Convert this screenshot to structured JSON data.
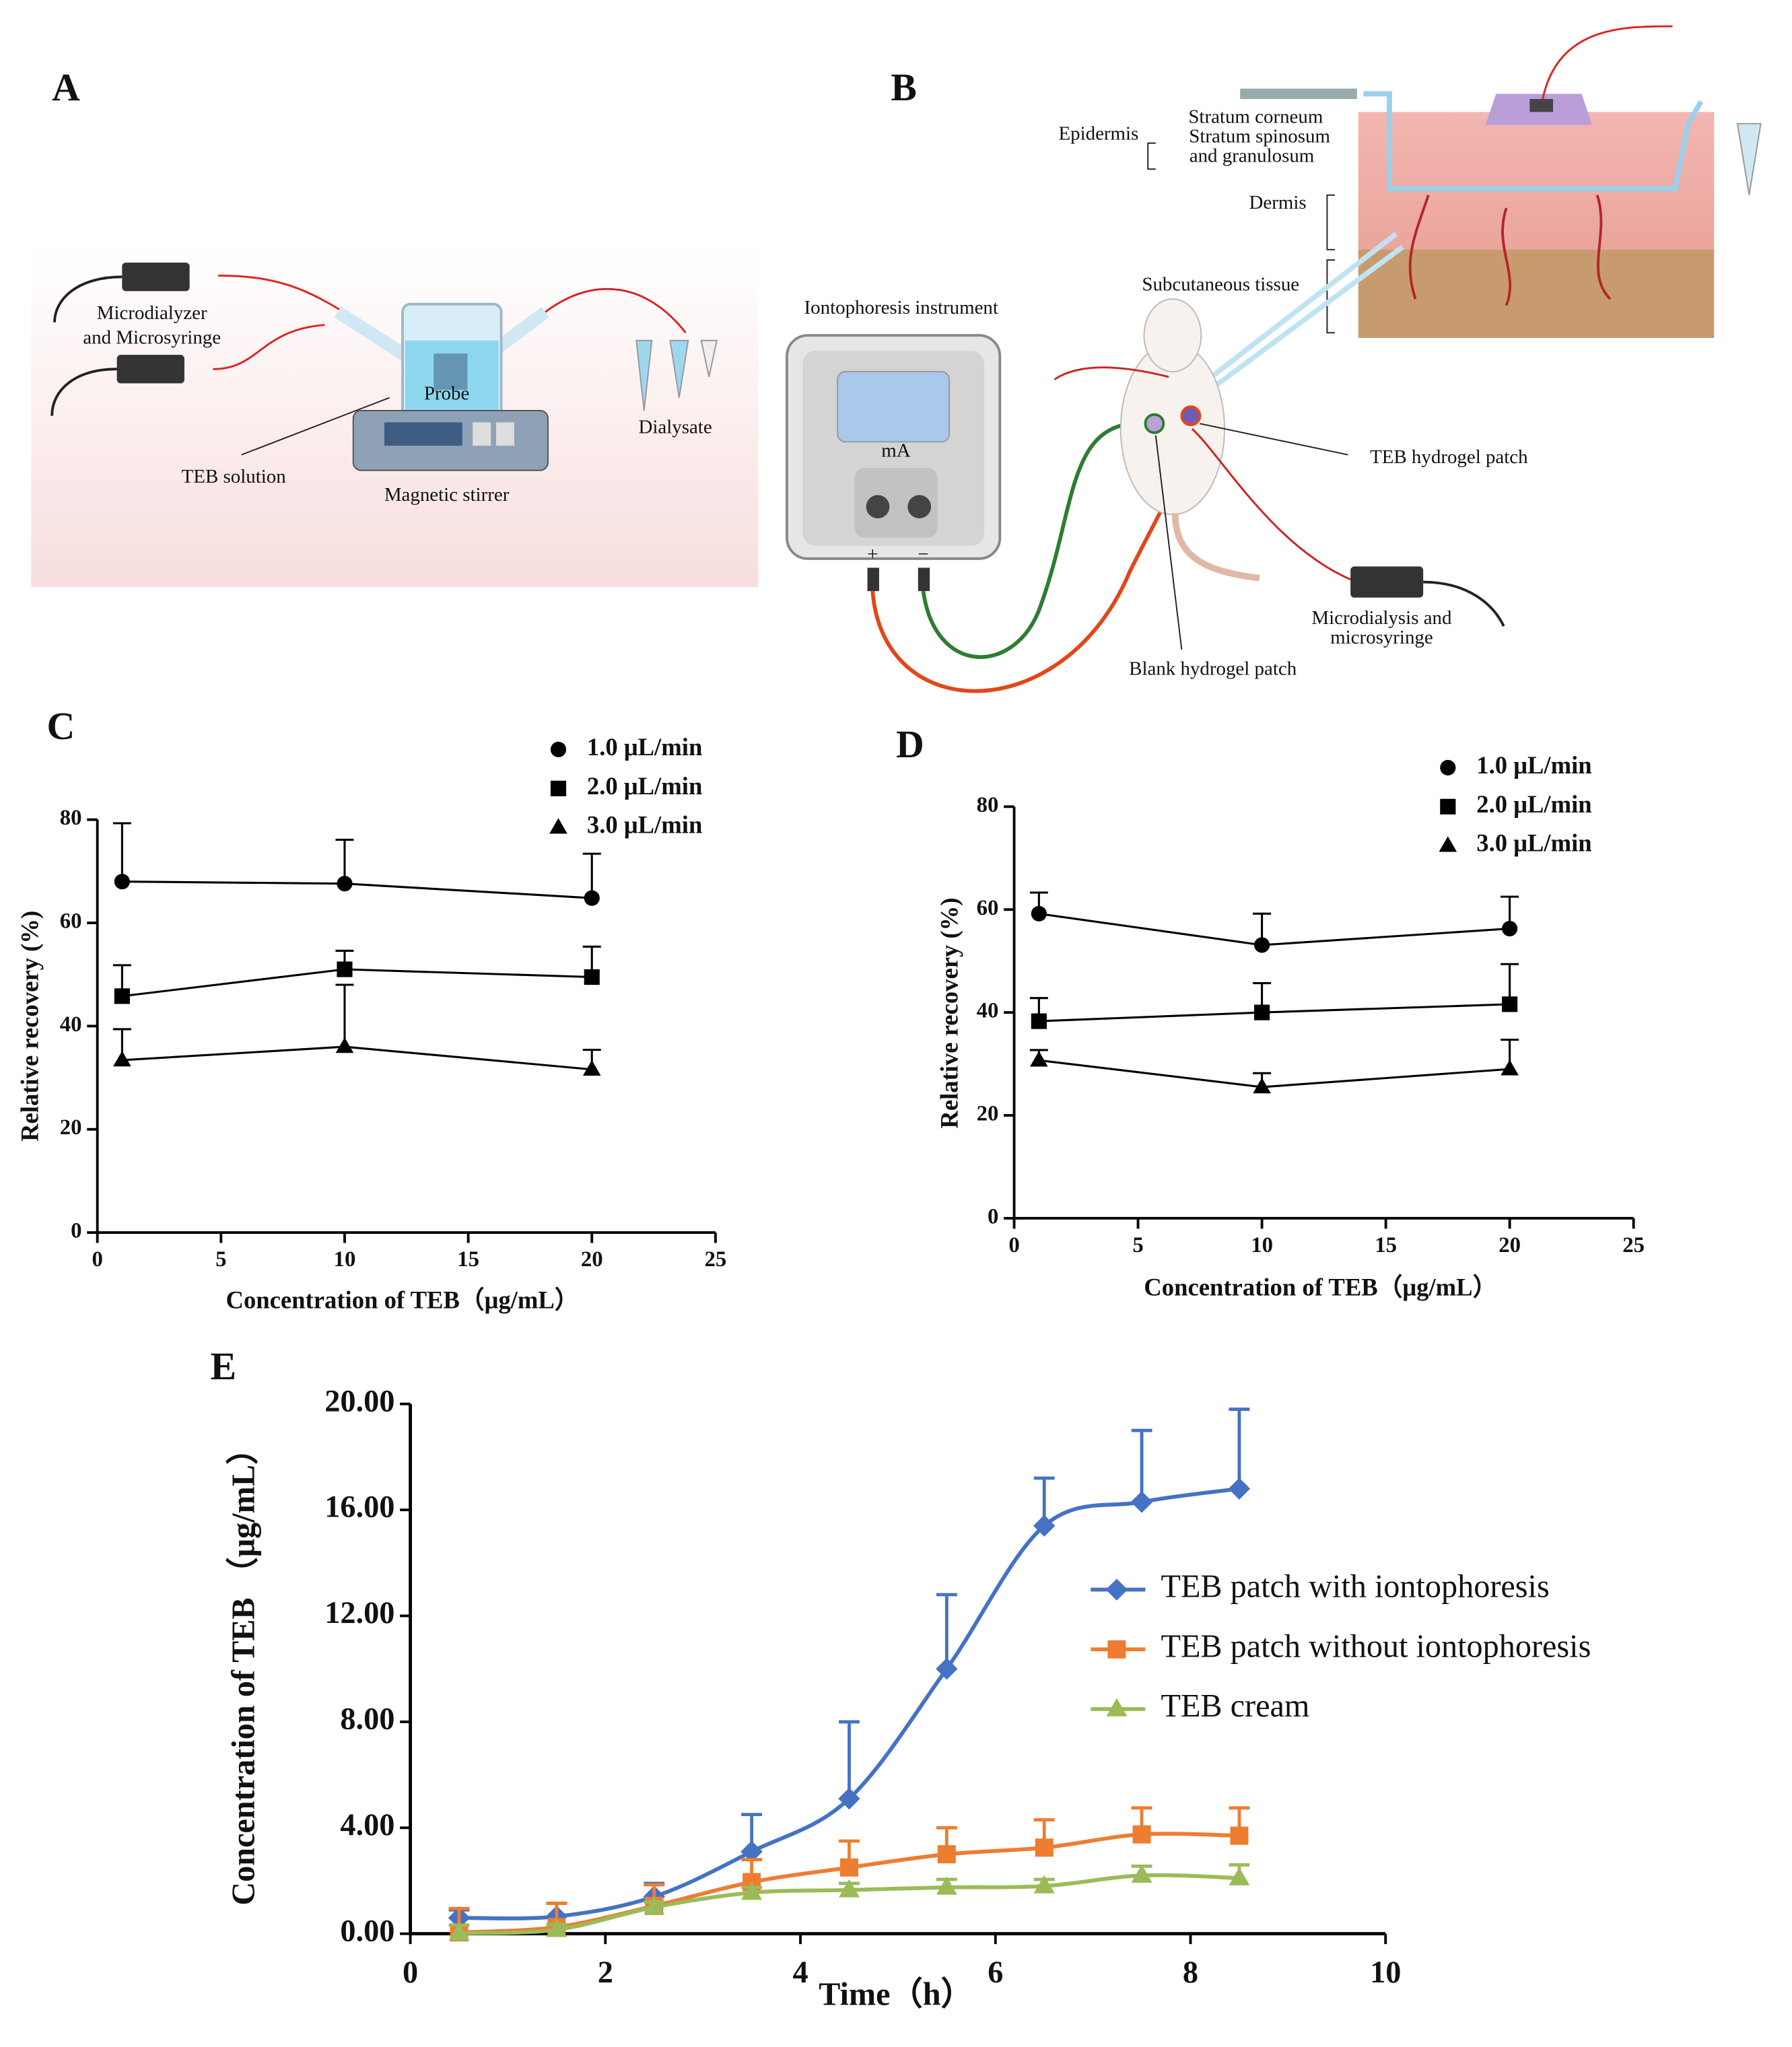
{
  "panels": {
    "a": "A",
    "b": "B",
    "c": "C",
    "d": "D",
    "e": "E"
  },
  "diagram_a": {
    "syringe_label": [
      "Microdialyzer",
      "and Microsyringe"
    ],
    "probe": "Probe",
    "dialysate": "Dialysate",
    "solution": "TEB solution",
    "stirrer": "Magnetic stirrer"
  },
  "diagram_b": {
    "epidermis": "Epidermis",
    "stratum_corneum": "Stratum corneum",
    "stratum_spinosum": [
      "Stratum spinosum",
      "and granulosum"
    ],
    "dermis": "Dermis",
    "subcutaneous": "Subcutaneous tissue",
    "instrument": "Iontophoresis instrument",
    "meter_unit": "mA",
    "plus": "+",
    "minus": "−",
    "teb_patch": "TEB hydrogel patch",
    "blank_patch": "Blank hydrogel patch",
    "microdialysis": [
      "Microdialysis and",
      "microsyringe"
    ]
  },
  "chart_data": [
    {
      "type": "line",
      "x_label": "Concentration of TEB（μg/mL）",
      "y_label": "Relative recovery (%)",
      "x": [
        1,
        10,
        20
      ],
      "xlim": [
        0,
        25
      ],
      "xticks": [
        0,
        5,
        10,
        15,
        20,
        25
      ],
      "ylim": [
        0,
        80
      ],
      "yticks": [
        0,
        20,
        40,
        60,
        80
      ],
      "smooth": false,
      "series": [
        {
          "name": "1.0 μL/min",
          "color": "#000000",
          "marker": "circle",
          "values": [
            68,
            67.6,
            64.8
          ],
          "errors": [
            11.3,
            8.5,
            8.6
          ]
        },
        {
          "name": "2.0 μL/min",
          "color": "#000000",
          "marker": "square",
          "values": [
            45.8,
            51,
            49.5
          ],
          "errors": [
            6,
            3.6,
            5.9
          ]
        },
        {
          "name": "3.0 μL/min",
          "color": "#000000",
          "marker": "triangle",
          "values": [
            33.4,
            36,
            31.6
          ],
          "errors": [
            6,
            12,
            3.8
          ]
        }
      ]
    },
    {
      "type": "line",
      "x_label": "Concentration of TEB（μg/mL）",
      "y_label": "Relative recovery (%)",
      "x": [
        1,
        10,
        20
      ],
      "xlim": [
        0,
        25
      ],
      "xticks": [
        0,
        5,
        10,
        15,
        20,
        25
      ],
      "ylim": [
        0,
        80
      ],
      "yticks": [
        0,
        20,
        40,
        60,
        80
      ],
      "smooth": false,
      "series": [
        {
          "name": "1.0 μL/min",
          "color": "#000000",
          "marker": "circle",
          "values": [
            59.2,
            53.1,
            56.3
          ],
          "errors": [
            4.1,
            6.1,
            6.2
          ]
        },
        {
          "name": "2.0 μL/min",
          "color": "#000000",
          "marker": "square",
          "values": [
            38.3,
            40,
            41.6
          ],
          "errors": [
            4.5,
            5.7,
            7.8
          ]
        },
        {
          "name": "3.0 μL/min",
          "color": "#000000",
          "marker": "triangle",
          "values": [
            30.7,
            25.5,
            29
          ],
          "errors": [
            2,
            2.7,
            5.7
          ]
        }
      ]
    },
    {
      "type": "line",
      "x_label": "Time（h）",
      "y_label": "Concentration of TEB （μg/mL）",
      "x": [
        0.5,
        1.5,
        2.5,
        3.5,
        4.5,
        5.5,
        6.5,
        7.5,
        8.5
      ],
      "xlim": [
        0,
        10
      ],
      "xticks": [
        0,
        2,
        4,
        6,
        8,
        10
      ],
      "ylim": [
        0,
        20
      ],
      "yticks": [
        {
          "value": 0,
          "label": "0.00"
        },
        {
          "value": 4,
          "label": "4.00"
        },
        {
          "value": 8,
          "label": "8.00"
        },
        {
          "value": 12,
          "label": "12.00"
        },
        {
          "value": 16,
          "label": "16.00"
        },
        {
          "value": 20,
          "label": "20.00"
        }
      ],
      "smooth": true,
      "series": [
        {
          "name": "TEB patch with iontophoresis",
          "color": "#4472c4",
          "marker": "diamond",
          "values": [
            0.6,
            0.65,
            1.4,
            3.1,
            5.1,
            10,
            15.4,
            16.3,
            16.8
          ],
          "errors": [
            0.3,
            0.5,
            0.5,
            1.4,
            2.9,
            2.8,
            1.8,
            2.7,
            3.0
          ]
        },
        {
          "name": "TEB patch without iontophoresis",
          "color": "#ed7d31",
          "marker": "square",
          "values": [
            0.05,
            0.25,
            1.05,
            1.95,
            2.5,
            3.0,
            3.25,
            3.75,
            3.7
          ],
          "errors": [
            0.9,
            0.9,
            0.8,
            0.85,
            1.0,
            1.0,
            1.05,
            1.0,
            1.05
          ]
        },
        {
          "name": "TEB cream",
          "color": "#9bbb59",
          "marker": "triangle",
          "values": [
            0.02,
            0.15,
            1.0,
            1.55,
            1.65,
            1.75,
            1.8,
            2.2,
            2.1
          ],
          "errors": [
            0.3,
            0.2,
            0.2,
            0.2,
            0.25,
            0.3,
            0.25,
            0.35,
            0.5
          ]
        }
      ]
    }
  ]
}
